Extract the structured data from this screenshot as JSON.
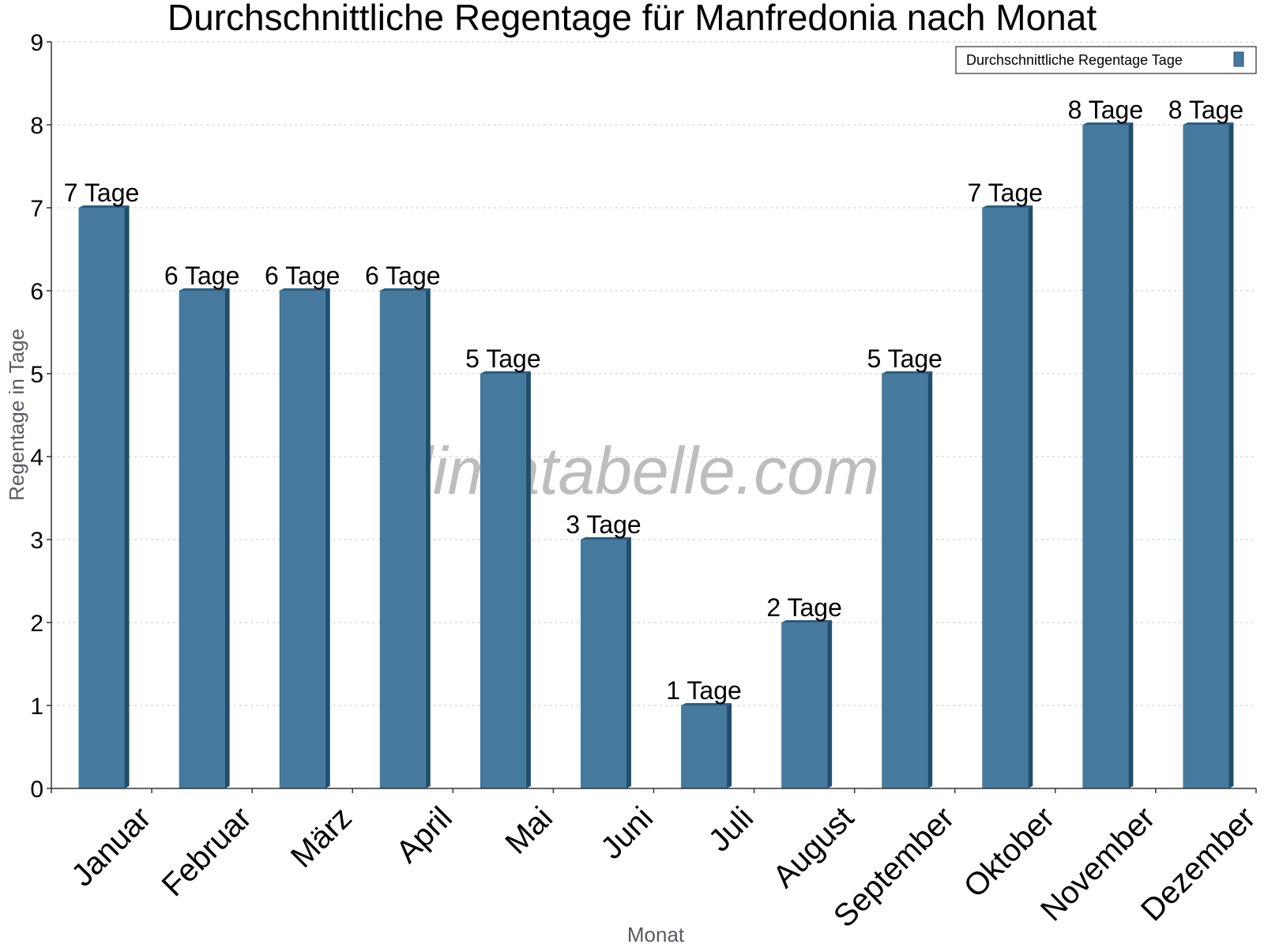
{
  "chart_data": {
    "type": "bar",
    "title": "Durchschnittliche Regentage für Manfredonia nach Monat",
    "xlabel": "Monat",
    "ylabel": "Regentage in Tage",
    "ylim": [
      0,
      9
    ],
    "yticks": [
      "0",
      "1",
      "2",
      "3",
      "4",
      "5",
      "6",
      "7",
      "8",
      "9"
    ],
    "grid": true,
    "legend_position": "top-right",
    "categories": [
      "Januar",
      "Februar",
      "März",
      "April",
      "Mai",
      "Juni",
      "Juli",
      "August",
      "September",
      "Oktober",
      "November",
      "Dezember"
    ],
    "series": [
      {
        "name": "Durchschnittliche Regentage Tage",
        "values": [
          7,
          6,
          6,
          6,
          5,
          3,
          1,
          2,
          5,
          7,
          8,
          8
        ],
        "labels": [
          "7 Tage",
          "6 Tage",
          "6 Tage",
          "6 Tage",
          "5 Tage",
          "3 Tage",
          "1 Tage",
          "2 Tage",
          "5 Tage",
          "7 Tage",
          "8 Tage",
          "8 Tage"
        ],
        "color": "#457a9e",
        "side_color": "#1f4e6e",
        "top_color": "#2b5d80"
      }
    ],
    "watermark": "klimatabelle.com"
  }
}
